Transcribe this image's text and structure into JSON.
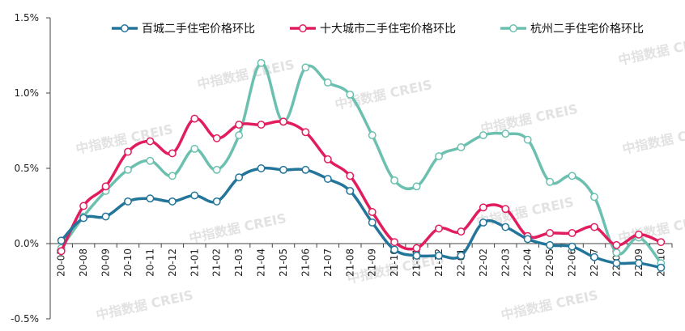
{
  "chart_data": {
    "type": "line",
    "title": "",
    "xlabel": "",
    "ylabel": "",
    "ylim": [
      -0.5,
      1.5
    ],
    "yticks": [
      "1.5%",
      "1.0%",
      "0.5%",
      "0.0%",
      "-0.5%"
    ],
    "ytick_values": [
      1.5,
      1.0,
      0.5,
      0.0,
      -0.5
    ],
    "categories": [
      "20-07",
      "20-08",
      "20-09",
      "20-10",
      "20-11",
      "20-12",
      "21-01",
      "21-02",
      "21-03",
      "21-04",
      "21-05",
      "21-06",
      "21-07",
      "21-08",
      "21-09",
      "21-10",
      "21-11",
      "21-12",
      "22-01",
      "22-02",
      "22-03",
      "22-04",
      "22-05",
      "22-06",
      "22-07",
      "22-08",
      "22-09",
      "22-10"
    ],
    "legend_position": "top",
    "watermark": "中指数据 CREIS",
    "series": [
      {
        "name": "百城二手住宅价格环比",
        "color": "#23759a",
        "values": [
          0.02,
          0.17,
          0.18,
          0.28,
          0.3,
          0.28,
          0.32,
          0.28,
          0.44,
          0.5,
          0.49,
          0.49,
          0.43,
          0.35,
          0.14,
          -0.04,
          -0.08,
          -0.08,
          -0.08,
          0.14,
          0.11,
          0.03,
          -0.01,
          -0.02,
          -0.09,
          -0.13,
          -0.13,
          -0.16
        ]
      },
      {
        "name": "十大城市二手住宅价格环比",
        "color": "#e11d5e",
        "values": [
          -0.05,
          0.25,
          0.38,
          0.61,
          0.68,
          0.6,
          0.83,
          0.7,
          0.79,
          0.79,
          0.81,
          0.74,
          0.56,
          0.45,
          0.21,
          0.01,
          -0.03,
          0.1,
          0.08,
          0.24,
          0.23,
          0.05,
          0.07,
          0.07,
          0.11,
          -0.01,
          0.06,
          0.01
        ]
      },
      {
        "name": "杭州二手住宅价格环比",
        "color": "#6cc0b0",
        "values": [
          -0.03,
          0.18,
          0.35,
          0.49,
          0.55,
          0.45,
          0.63,
          0.49,
          0.72,
          1.2,
          0.81,
          1.17,
          1.07,
          0.99,
          0.72,
          0.42,
          0.38,
          0.58,
          0.64,
          0.72,
          0.73,
          0.69,
          0.41,
          0.45,
          0.31,
          -0.06,
          0.04,
          -0.13
        ]
      }
    ]
  }
}
